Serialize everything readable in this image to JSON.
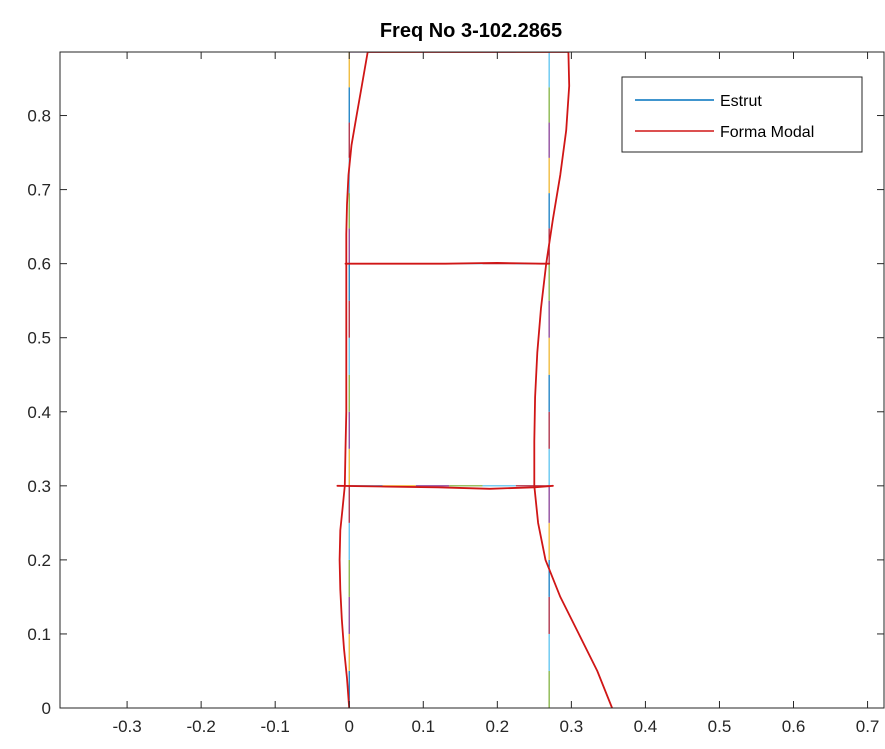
{
  "chart_data": {
    "type": "line",
    "title": "Freq No 3-102.2865",
    "xlabel": "",
    "ylabel": "",
    "xlim": [
      -0.3906,
      0.7222
    ],
    "ylim": [
      0,
      0.8858
    ],
    "xticks": [
      -0.3,
      -0.2,
      -0.1,
      0,
      0.1,
      0.2,
      0.3,
      0.4,
      0.5,
      0.6,
      0.7
    ],
    "xtick_labels": [
      "-0.3",
      "-0.2",
      "-0.1",
      "0",
      "0.1",
      "0.2",
      "0.3",
      "0.4",
      "0.5",
      "0.6",
      "0.7"
    ],
    "yticks": [
      0,
      0.1,
      0.2,
      0.3,
      0.4,
      0.5,
      0.6,
      0.7,
      0.8
    ],
    "ytick_labels": [
      "0",
      "0.1",
      "0.2",
      "0.3",
      "0.4",
      "0.5",
      "0.6",
      "0.7",
      "0.8"
    ],
    "grid": false,
    "legend_placement": "top-right",
    "legend": [
      {
        "label": "Estrut",
        "color": "#0072BD"
      },
      {
        "label": "Forma Modal",
        "color": "#D01616"
      }
    ],
    "series": [
      {
        "name": "Estrut",
        "color": "#0072BD",
        "segments": [
          {
            "x": [
              0,
              0
            ],
            "y": [
              0,
              0.3
            ]
          },
          {
            "x": [
              0,
              0
            ],
            "y": [
              0.3,
              0.6
            ]
          },
          {
            "x": [
              0,
              0
            ],
            "y": [
              0.6,
              0.8858
            ]
          },
          {
            "x": [
              0.27,
              0.27
            ],
            "y": [
              0,
              0.3
            ]
          },
          {
            "x": [
              0.27,
              0.27
            ],
            "y": [
              0.3,
              0.6
            ]
          },
          {
            "x": [
              0.27,
              0.27
            ],
            "y": [
              0.6,
              0.8858
            ]
          },
          {
            "x": [
              0,
              0.27
            ],
            "y": [
              0.3,
              0.3
            ]
          },
          {
            "x": [
              0,
              0.27
            ],
            "y": [
              0.6,
              0.6
            ]
          },
          {
            "x": [
              0,
              0.27
            ],
            "y": [
              0.8858,
              0.8858
            ]
          }
        ],
        "element_colors": [
          "#0072BD",
          "#EDB120",
          "#7E2F8E",
          "#77AC30",
          "#4DBEEE",
          "#A2142F"
        ]
      },
      {
        "name": "Forma Modal",
        "color": "#D01616",
        "segments": [
          {
            "x": [
              0,
              -0.003,
              -0.007,
              -0.01,
              -0.012,
              -0.013,
              -0.012,
              -0.009,
              -0.006
            ],
            "y": [
              0,
              0.04,
              0.08,
              0.12,
              0.16,
              0.2,
              0.24,
              0.27,
              0.3
            ]
          },
          {
            "x": [
              -0.006,
              -0.005,
              -0.004,
              -0.004,
              -0.004,
              -0.004,
              -0.004
            ],
            "y": [
              0.3,
              0.35,
              0.4,
              0.45,
              0.5,
              0.55,
              0.6
            ]
          },
          {
            "x": [
              -0.004,
              -0.004,
              -0.003,
              -0.001,
              0.003,
              0.01,
              0.017,
              0.025
            ],
            "y": [
              0.6,
              0.64,
              0.68,
              0.72,
              0.76,
              0.8,
              0.84,
              0.8858
            ]
          },
          {
            "x": [
              0.355,
              0.335,
              0.31,
              0.285,
              0.265,
              0.255,
              0.25
            ],
            "y": [
              0,
              0.05,
              0.1,
              0.15,
              0.2,
              0.25,
              0.3
            ]
          },
          {
            "x": [
              0.25,
              0.25,
              0.251,
              0.254,
              0.259,
              0.266
            ],
            "y": [
              0.3,
              0.36,
              0.42,
              0.48,
              0.54,
              0.6
            ]
          },
          {
            "x": [
              0.266,
              0.275,
              0.285,
              0.293,
              0.297,
              0.296
            ],
            "y": [
              0.6,
              0.66,
              0.72,
              0.78,
              0.84,
              0.8858
            ]
          },
          {
            "x": [
              -0.016,
              0.05,
              0.12,
              0.19,
              0.25,
              0.275
            ],
            "y": [
              0.3,
              0.299,
              0.298,
              0.296,
              0.298,
              0.3
            ]
          },
          {
            "x": [
              -0.005,
              0.06,
              0.13,
              0.2,
              0.26,
              0.27
            ],
            "y": [
              0.6,
              0.6,
              0.6,
              0.601,
              0.6,
              0.6
            ]
          },
          {
            "x": [
              0.025,
              0.1,
              0.18,
              0.26,
              0.296
            ],
            "y": [
              0.8858,
              0.8858,
              0.8858,
              0.8858,
              0.8858
            ]
          }
        ]
      }
    ]
  }
}
